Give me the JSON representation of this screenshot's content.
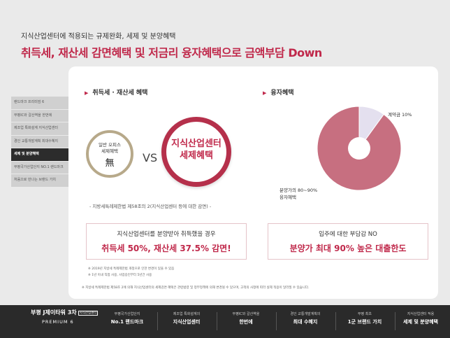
{
  "header": {
    "subtitle": "지식산업센터에 적용되는 규제완화, 세제 및 분양혜택",
    "title": "취득세, 재산세 감면혜택 및 저금리 융자혜택으로 금액부담 Down"
  },
  "sidebar": {
    "items": [
      {
        "label": "랜드마크 프리미엄 6"
      },
      {
        "label": "부평IC와 갈산역을 한번에"
      },
      {
        "label": "제조업 특화설계 지식산업센터"
      },
      {
        "label": "경인 교통개발계획 최대수혜지"
      },
      {
        "label": "세제 및 분양혜택"
      },
      {
        "label": "부평국가산업단지 NO.1 랜드마크"
      },
      {
        "label": "처음으로 만나는 브랜드 가치"
      }
    ],
    "active_index": 4
  },
  "left_section": {
    "title": "취득세 · 재산세 혜택",
    "office": {
      "line1": "일반 오피스",
      "line2": "세제혜택",
      "glyph": "無"
    },
    "vs": "VS",
    "center": {
      "line1": "지식산업센터",
      "line2": "세제혜택"
    },
    "law": "- 지방세특례제한법 제58조의 2(지식산업센터 등에 대한 감면) -",
    "box": {
      "line1": "지식산업센터를 분양받아 취득했을 경우",
      "line2": "취득세 50%, 재산세 37.5% 감면!"
    },
    "note1": "※ 2019년 지방세 특례제한법 개정으로 인한 변경이 있을 수 있음",
    "note2": "※ 1년 이내 직접 사용, 사업승인부터 5년간 사용"
  },
  "right_section": {
    "title": "융자혜택",
    "pie_label_small": "계약금 10%",
    "pie_label_big_1": "분양가의 80~90%",
    "pie_label_big_2": "융자혜택",
    "box": {
      "line1": "입주에 대한 부담감 NO",
      "line2": "분양가 최대 90% 높은 대출한도"
    }
  },
  "chart_data": {
    "type": "pie",
    "slices": [
      {
        "label": "계약금 10%",
        "value": 10,
        "color": "#e4e0ef"
      },
      {
        "label": "분양가의 80~90% 융자혜택",
        "value": 90,
        "color": "#c76f80"
      }
    ]
  },
  "bottom_note": "※ 지방세 특례제한법 제58조 2에 의해 지식산업센터의 세제감면 혜택은 관련법령 및 정부정책에 의해 변경될 수 있으며, 고객의 사정에 따라 실제 적용이 달라질 수 있습니다.",
  "footer": {
    "logo_line1": "부평 J제이타워 3차",
    "logo_tag": "지식산업센터",
    "logo_line2": "PREMIUM 6",
    "items": [
      {
        "small": "부평국가산업단지",
        "main": "No.1 랜드마크"
      },
      {
        "small": "제조업 특화설계의",
        "main": "지식산업센터"
      },
      {
        "small": "부평IC와 갈산역을",
        "main": "한번에"
      },
      {
        "small": "경인 교통개발계획의",
        "main": "최대 수혜지"
      },
      {
        "small": "부평 최초",
        "main": "1군 브랜드 가치"
      },
      {
        "small": "지식산업센터 적용",
        "main": "세제 및 분양혜택"
      }
    ]
  }
}
